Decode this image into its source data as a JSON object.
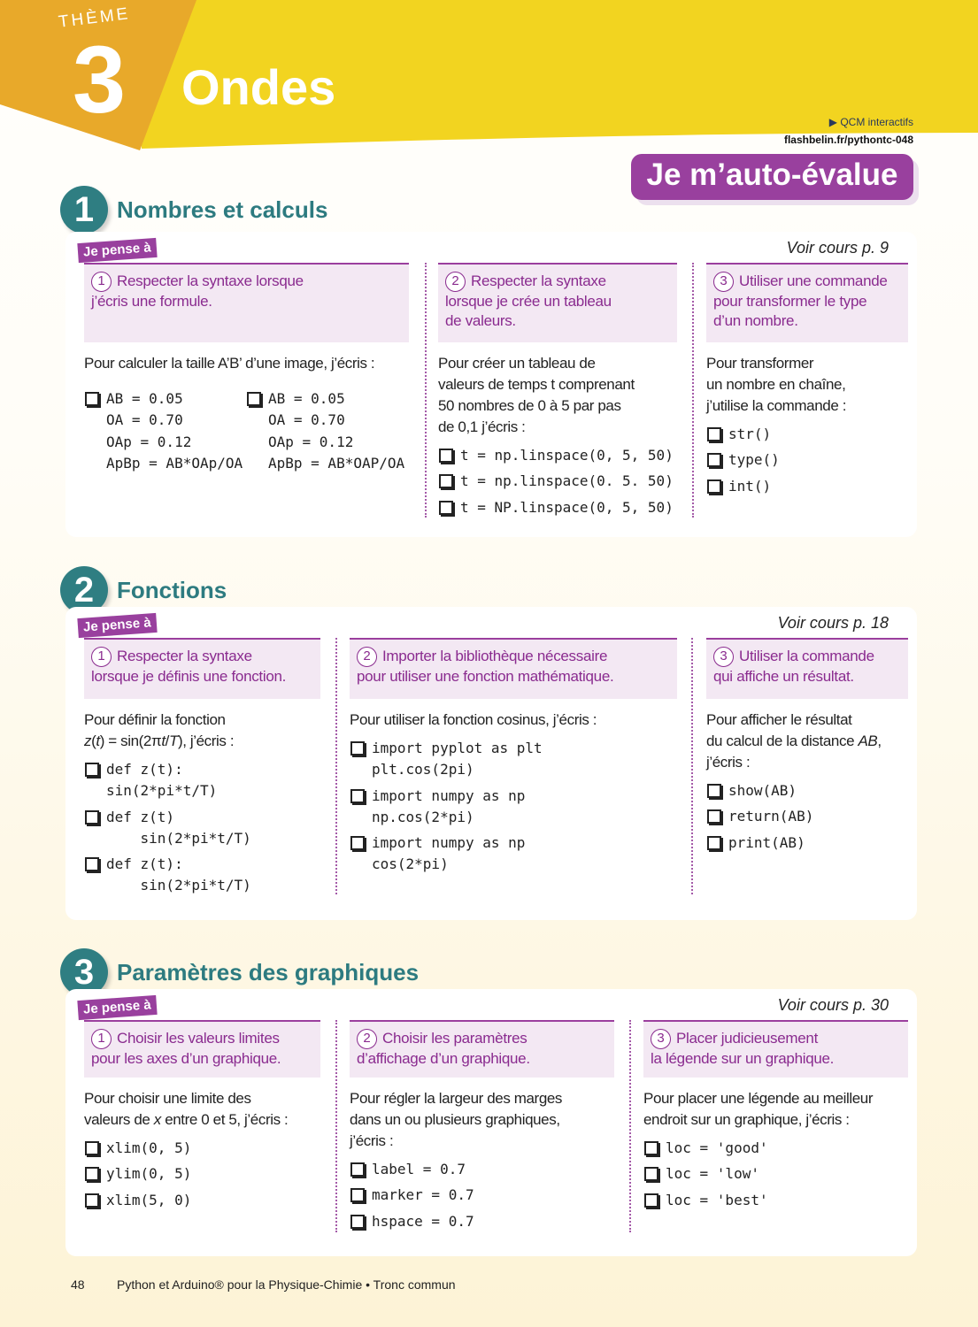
{
  "header": {
    "theme_label": "THÈME",
    "theme_number": "3",
    "chapter_title": "Ondes",
    "qcm_label": "QCM interactifs",
    "qcm_link": "flashbelin.fr/pythontc-048",
    "banner": "Je m’auto-évalue",
    "pense_label": "Je pense à",
    "colors": {
      "yellow": "#f2d420",
      "orange": "#e8a92a",
      "purple": "#99409e",
      "teal": "#2f7e82"
    }
  },
  "sections": [
    {
      "number": "1",
      "title": "Nombres et calculs",
      "voir": "Voir cours p. 9",
      "columns": [
        {
          "num": "1",
          "heading": [
            "Respecter la syntaxe lorsque",
            "j’écris une formule."
          ],
          "intro": [
            {
              "t": "Pour calculer la taille A’B’ d’une image, j’écris :"
            }
          ],
          "options": [
            [
              "AB = 0.05",
              "OA = 0.70",
              "OAp = 0.12",
              "ApBp = AB*OAp/OA"
            ],
            [
              "AB = 0.05",
              "OA = 0.70",
              "OAp = 0.12",
              "ApBp = AB*OAP/OA"
            ]
          ]
        },
        {
          "num": "2",
          "heading": [
            "Respecter la syntaxe",
            "lorsque je crée un tableau",
            "de valeurs."
          ],
          "intro": [
            {
              "t": "Pour créer un tableau de\nvaleurs de temps t comprenant\n50 nombres de 0 à 5 par pas\nde 0,1 j’écris :"
            }
          ],
          "options": [
            [
              "t = np.linspace(0, 5, 50)"
            ],
            [
              "t = np.linspace(0. 5. 50)"
            ],
            [
              "t = NP.linspace(0, 5, 50)"
            ]
          ]
        },
        {
          "num": "3",
          "heading": [
            "Utiliser une commande",
            "pour transformer le type",
            "d’un nombre."
          ],
          "intro": [
            {
              "t": "Pour transformer\nun nombre en chaîne,\nj’utilise la commande :"
            }
          ],
          "options": [
            [
              "str()"
            ],
            [
              "type()"
            ],
            [
              "int()"
            ]
          ]
        }
      ]
    },
    {
      "number": "2",
      "title": "Fonctions",
      "voir": "Voir cours p. 18",
      "columns": [
        {
          "num": "1",
          "heading": [
            "Respecter la syntaxe",
            "lorsque je définis une fonction."
          ],
          "intro": [
            {
              "t": "Pour définir la fonction\n"
            },
            {
              "t": "z",
              "i": true
            },
            {
              "t": "("
            },
            {
              "t": "t",
              "i": true
            },
            {
              "t": ") = sin(2π"
            },
            {
              "t": "t",
              "i": true
            },
            {
              "t": "/"
            },
            {
              "t": "T",
              "i": true
            },
            {
              "t": "), j’écris :"
            }
          ],
          "options": [
            [
              "def z(t):",
              "sin(2*pi*t/T)"
            ],
            [
              "def z(t)",
              "    sin(2*pi*t/T)"
            ],
            [
              "def z(t):",
              "    sin(2*pi*t/T)"
            ]
          ]
        },
        {
          "num": "2",
          "heading": [
            "Importer la bibliothèque nécessaire",
            "pour utiliser une fonction mathématique."
          ],
          "intro": [
            {
              "t": "Pour utiliser la fonction cosinus, j’écris :"
            }
          ],
          "options": [
            [
              "import pyplot as plt",
              "plt.cos(2pi)"
            ],
            [
              "import numpy as np",
              "np.cos(2*pi)"
            ],
            [
              "import numpy as np",
              "cos(2*pi)"
            ]
          ]
        },
        {
          "num": "3",
          "heading": [
            "Utiliser la commande",
            "qui affiche un résultat."
          ],
          "intro": [
            {
              "t": "Pour afficher le résultat\ndu calcul de la distance "
            },
            {
              "t": "AB",
              "i": true
            },
            {
              "t": ",\nj’écris :"
            }
          ],
          "options": [
            [
              "show(AB)"
            ],
            [
              "return(AB)"
            ],
            [
              "print(AB)"
            ]
          ]
        }
      ]
    },
    {
      "number": "3",
      "title": "Paramètres des graphiques",
      "voir": "Voir cours p. 30",
      "columns": [
        {
          "num": "1",
          "heading": [
            "Choisir les valeurs limites",
            "pour les axes d’un graphique."
          ],
          "intro": [
            {
              "t": "Pour choisir une limite des\nvaleurs de "
            },
            {
              "t": "x",
              "i": true
            },
            {
              "t": " entre 0 et 5, j’écris :"
            }
          ],
          "options": [
            [
              "xlim(0, 5)"
            ],
            [
              "ylim(0, 5)"
            ],
            [
              "xlim(5, 0)"
            ]
          ]
        },
        {
          "num": "2",
          "heading": [
            "Choisir les paramètres",
            "d’affichage d’un graphique."
          ],
          "intro": [
            {
              "t": "Pour régler la largeur des marges\ndans un ou plusieurs graphiques,\nj’écris :"
            }
          ],
          "options": [
            [
              "label = 0.7"
            ],
            [
              "marker = 0.7"
            ],
            [
              "hspace = 0.7"
            ]
          ]
        },
        {
          "num": "3",
          "heading": [
            "Placer judicieusement",
            "la légende sur un graphique."
          ],
          "intro": [
            {
              "t": "Pour placer une légende au meilleur\nendroit sur un graphique, j’écris :"
            }
          ],
          "options": [
            [
              "loc = 'good'"
            ],
            [
              "loc = 'low'"
            ],
            [
              "loc = 'best'"
            ]
          ]
        }
      ]
    }
  ],
  "footer": {
    "page": "48",
    "book": "Python et Arduino® pour la Physique-Chimie • Tronc commun"
  }
}
